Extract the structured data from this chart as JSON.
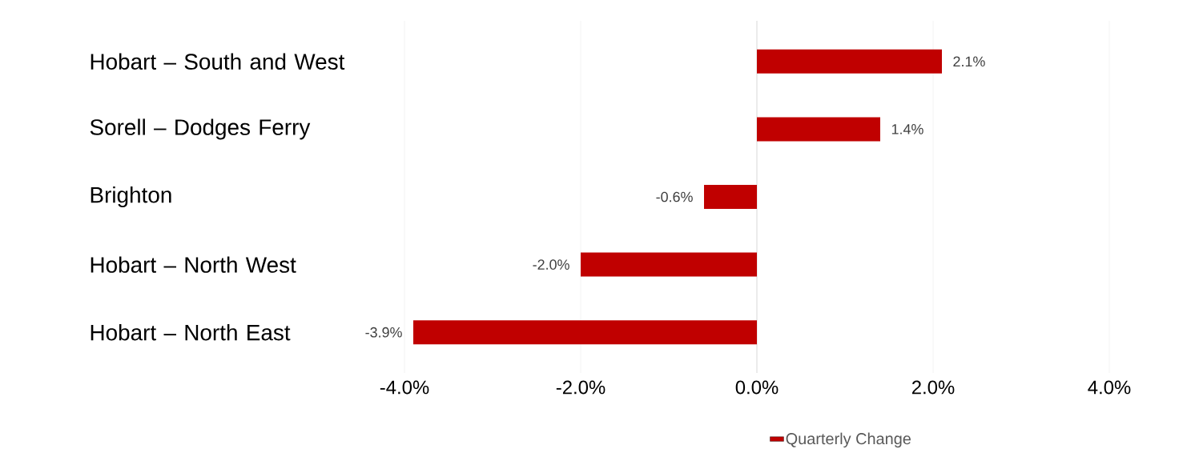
{
  "chart_data": {
    "type": "bar",
    "orientation": "horizontal",
    "categories": [
      "Hobart – South and West",
      "Sorell – Dodges Ferry",
      "Brighton",
      "Hobart – North West",
      "Hobart – North East"
    ],
    "series": [
      {
        "name": "Quarterly Change",
        "color": "#c00000",
        "values": [
          2.1,
          1.4,
          -0.6,
          -2.0,
          -3.9
        ],
        "value_labels": [
          "2.1%",
          "1.4%",
          "-0.6%",
          "-2.0%",
          "-3.9%"
        ]
      }
    ],
    "xlim": [
      -4,
      4
    ],
    "xticks": [
      {
        "value": -4,
        "label": "-4.0%"
      },
      {
        "value": -2,
        "label": "-2.0%"
      },
      {
        "value": 0,
        "label": "0.0%"
      },
      {
        "value": 2,
        "label": "2.0%"
      },
      {
        "value": 4,
        "label": "4.0%"
      }
    ],
    "grid": "x",
    "legend": "bottom"
  }
}
